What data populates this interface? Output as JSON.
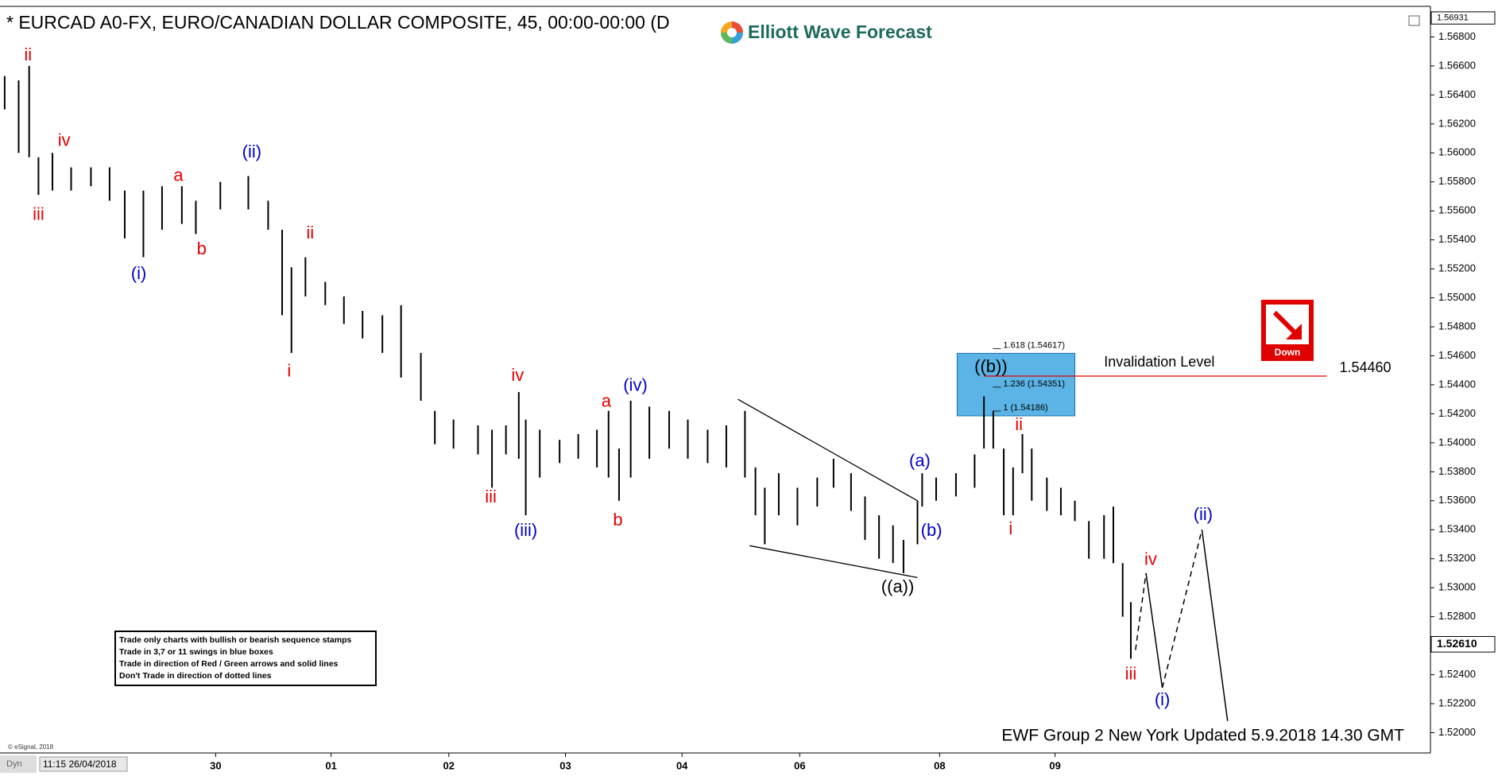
{
  "chart_data": {
    "type": "ohlc",
    "title": "* EURCAD A0-FX, EURO/CANADIAN DOLLAR COMPOSITE, 45, 00:00-00:00 (D",
    "logo": "Elliott Wave Forecast",
    "color": "#000000",
    "xlim": [
      0,
      12.27
    ],
    "ylim": [
      1.5186,
      1.57
    ],
    "xticks": [
      {
        "value": 1.85,
        "label": "30"
      },
      {
        "value": 2.84,
        "label": "01"
      },
      {
        "value": 3.85,
        "label": "02"
      },
      {
        "value": 4.85,
        "label": "03"
      },
      {
        "value": 5.85,
        "label": "04"
      },
      {
        "value": 6.86,
        "label": "06"
      },
      {
        "value": 8.06,
        "label": "08"
      },
      {
        "value": 9.05,
        "label": "09"
      }
    ],
    "yticks": [
      {
        "value": 1.52,
        "label": "1.52000"
      },
      {
        "value": 1.522,
        "label": "1.52200"
      },
      {
        "value": 1.524,
        "label": "1.52400"
      },
      {
        "value": 1.526,
        "label": "1.52600"
      },
      {
        "value": 1.528,
        "label": "1.52800"
      },
      {
        "value": 1.53,
        "label": "1.53000"
      },
      {
        "value": 1.532,
        "label": "1.53200"
      },
      {
        "value": 1.534,
        "label": "1.53400"
      },
      {
        "value": 1.536,
        "label": "1.53600"
      },
      {
        "value": 1.538,
        "label": "1.53800"
      },
      {
        "value": 1.54,
        "label": "1.54000"
      },
      {
        "value": 1.542,
        "label": "1.54200"
      },
      {
        "value": 1.544,
        "label": "1.54400"
      },
      {
        "value": 1.546,
        "label": "1.54600"
      },
      {
        "value": 1.548,
        "label": "1.54800"
      },
      {
        "value": 1.55,
        "label": "1.55000"
      },
      {
        "value": 1.552,
        "label": "1.55200"
      },
      {
        "value": 1.554,
        "label": "1.55400"
      },
      {
        "value": 1.556,
        "label": "1.55600"
      },
      {
        "value": 1.558,
        "label": "1.55800"
      },
      {
        "value": 1.56,
        "label": "1.56000"
      },
      {
        "value": 1.562,
        "label": "1.56200"
      },
      {
        "value": 1.564,
        "label": "1.56400"
      },
      {
        "value": 1.566,
        "label": "1.56600"
      },
      {
        "value": 1.568,
        "label": "1.56800"
      }
    ],
    "x": [
      0.04,
      0.16,
      0.25,
      0.33,
      0.45,
      0.61,
      0.78,
      0.94,
      1.07,
      1.23,
      1.39,
      1.56,
      1.68,
      1.89,
      2.13,
      2.3,
      2.42,
      2.5,
      2.62,
      2.79,
      2.95,
      3.11,
      3.28,
      3.44,
      3.61,
      3.73,
      3.89,
      4.1,
      4.22,
      4.34,
      4.45,
      4.51,
      4.63,
      4.8,
      4.96,
      5.12,
      5.22,
      5.31,
      5.41,
      5.57,
      5.74,
      5.9,
      6.07,
      6.23,
      6.39,
      6.48,
      6.56,
      6.68,
      6.84,
      7.01,
      7.15,
      7.3,
      7.42,
      7.54,
      7.66,
      7.75,
      7.87,
      7.91,
      8.03,
      8.2,
      8.36,
      8.44,
      8.52,
      8.61,
      8.69,
      8.77,
      8.85,
      8.98,
      9.1,
      9.22,
      9.34,
      9.47,
      9.55,
      9.63,
      9.7
    ],
    "high": [
      1.5653,
      1.565,
      1.566,
      1.5597,
      1.56,
      1.559,
      1.559,
      1.559,
      1.5574,
      1.5574,
      1.5577,
      1.5577,
      1.5567,
      1.558,
      1.5584,
      1.5567,
      1.5547,
      1.5521,
      1.5528,
      1.5511,
      1.5501,
      1.5491,
      1.5488,
      1.5495,
      1.5462,
      1.5422,
      1.5416,
      1.5412,
      1.5409,
      1.5412,
      1.5435,
      1.5416,
      1.5409,
      1.5402,
      1.5406,
      1.5409,
      1.5422,
      1.5396,
      1.5429,
      1.5425,
      1.5422,
      1.5416,
      1.5409,
      1.5412,
      1.5422,
      1.5383,
      1.5369,
      1.5379,
      1.5369,
      1.5376,
      1.5389,
      1.5379,
      1.5363,
      1.535,
      1.5343,
      1.5333,
      1.536,
      1.5379,
      1.5376,
      1.5379,
      1.5392,
      1.5432,
      1.5422,
      1.5396,
      1.5383,
      1.5406,
      1.5396,
      1.5376,
      1.5369,
      1.536,
      1.5346,
      1.535,
      1.5356,
      1.5317,
      1.529
    ],
    "low": [
      1.563,
      1.56,
      1.5597,
      1.5571,
      1.5574,
      1.5574,
      1.5577,
      1.5567,
      1.5541,
      1.5528,
      1.5547,
      1.5551,
      1.5544,
      1.5561,
      1.5561,
      1.5547,
      1.5488,
      1.5462,
      1.5501,
      1.5495,
      1.5482,
      1.5472,
      1.5462,
      1.5445,
      1.5429,
      1.5399,
      1.5396,
      1.5392,
      1.5369,
      1.5392,
      1.5389,
      1.535,
      1.5376,
      1.5386,
      1.5389,
      1.5383,
      1.5376,
      1.536,
      1.5376,
      1.5389,
      1.5396,
      1.5389,
      1.5386,
      1.5383,
      1.5376,
      1.535,
      1.533,
      1.535,
      1.5343,
      1.5356,
      1.5369,
      1.5353,
      1.5333,
      1.532,
      1.5317,
      1.531,
      1.533,
      1.5356,
      1.536,
      1.5363,
      1.5369,
      1.5396,
      1.5396,
      1.535,
      1.535,
      1.5379,
      1.536,
      1.5353,
      1.535,
      1.5346,
      1.532,
      1.532,
      1.5317,
      1.528,
      1.5251
    ],
    "annotations": [
      {
        "text": "ii",
        "color": "#e00000",
        "x": 0.24,
        "y": 1.5667
      },
      {
        "text": "iv",
        "color": "#e00000",
        "x": 0.55,
        "y": 1.5608
      },
      {
        "text": "iii",
        "color": "#e00000",
        "x": 0.33,
        "y": 1.5557
      },
      {
        "text": "(i)",
        "color": "#0000cc",
        "x": 1.19,
        "y": 1.5516
      },
      {
        "text": "a",
        "color": "#e00000",
        "x": 1.53,
        "y": 1.5584
      },
      {
        "text": "b",
        "color": "#e00000",
        "x": 1.73,
        "y": 1.5533
      },
      {
        "text": "(ii)",
        "color": "#0000cc",
        "x": 2.16,
        "y": 1.56
      },
      {
        "text": "ii",
        "color": "#e00000",
        "x": 2.66,
        "y": 1.5544
      },
      {
        "text": "i",
        "color": "#e00000",
        "x": 2.48,
        "y": 1.5449
      },
      {
        "text": "iv",
        "color": "#e00000",
        "x": 4.44,
        "y": 1.5446
      },
      {
        "text": "iii",
        "color": "#e00000",
        "x": 4.21,
        "y": 1.5362
      },
      {
        "text": "(iii)",
        "color": "#0000cc",
        "x": 4.51,
        "y": 1.5339
      },
      {
        "text": "a",
        "color": "#e00000",
        "x": 5.2,
        "y": 1.5428
      },
      {
        "text": "b",
        "color": "#e00000",
        "x": 5.3,
        "y": 1.5346
      },
      {
        "text": "(iv)",
        "color": "#0000cc",
        "x": 5.45,
        "y": 1.5439
      },
      {
        "text": "(a)",
        "color": "#0000cc",
        "x": 7.89,
        "y": 1.5387
      },
      {
        "text": "(b)",
        "color": "#0000cc",
        "x": 7.99,
        "y": 1.5339
      },
      {
        "text": "((a))",
        "color": "#000000",
        "x": 7.7,
        "y": 1.53
      },
      {
        "text": "((b))",
        "color": "#000000",
        "x": 8.5,
        "y": 1.5452
      },
      {
        "text": "ii",
        "color": "#e00000",
        "x": 8.74,
        "y": 1.5412
      },
      {
        "text": "i",
        "color": "#e00000",
        "x": 8.67,
        "y": 1.534
      },
      {
        "text": "iv",
        "color": "#e00000",
        "x": 9.87,
        "y": 1.5319
      },
      {
        "text": "iii",
        "color": "#e00000",
        "x": 9.7,
        "y": 1.524
      },
      {
        "text": "(i)",
        "color": "#0000cc",
        "x": 9.97,
        "y": 1.5222
      },
      {
        "text": "(ii)",
        "color": "#0000cc",
        "x": 10.32,
        "y": 1.535
      }
    ],
    "trendlines": [
      {
        "x": [
          6.33,
          7.87
        ],
        "y": [
          1.543,
          1.536
        ]
      },
      {
        "x": [
          6.43,
          7.87
        ],
        "y": [
          1.5329,
          1.5307
        ]
      }
    ],
    "projection": {
      "x": [
        9.74,
        9.83,
        9.97,
        10.31,
        10.53
      ],
      "y": [
        1.5257,
        1.531,
        1.5231,
        1.534,
        1.5208
      ],
      "segment_styles": [
        "dashed",
        "solid",
        "dashed",
        "solid"
      ]
    },
    "fib_box": {
      "x": [
        8.21,
        9.22
      ],
      "color": "#5bb4e5",
      "levels": [
        {
          "label": "1.618 (1.54617)",
          "value": 1.54617
        },
        {
          "label": "1.236 (1.54351)",
          "value": 1.54351
        },
        {
          "label": "1 (1.54186)",
          "value": 1.54186
        }
      ]
    },
    "invalidation": {
      "text": "Invalidation Level",
      "x": [
        8.44,
        11.38
      ],
      "level": {
        "value": 1.5446,
        "label": "1.54460"
      },
      "color": "#e00000"
    },
    "last_price": {
      "value": 1.5261,
      "label": "1.52610"
    },
    "top_price": {
      "value": 1.56931,
      "label": "1.56931"
    },
    "badge": "Down",
    "footer": "EWF Group 2 New York Updated 5.9.2018 14.30 GMT",
    "rules": [
      "Trade only charts with bullish or bearish sequence stamps",
      "Trade in 3,7 or 11 swings in blue boxes",
      "Trade in direction of Red / Green arrows and solid lines",
      "Don't Trade in direction of dotted lines"
    ],
    "copyright": "© eSignal, 2018",
    "mode": "Dyn",
    "start_time": "11:15 26/04/2018"
  }
}
